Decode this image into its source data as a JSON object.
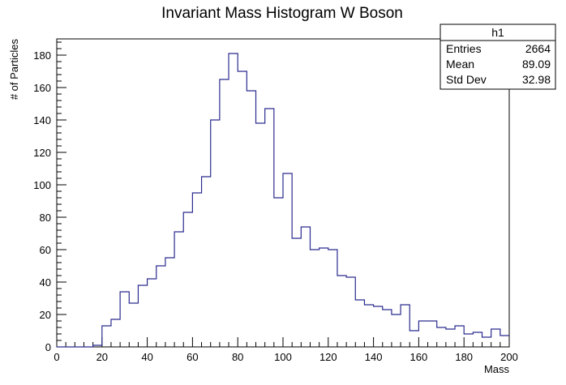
{
  "chart_data": {
    "type": "bar",
    "histogram": true,
    "title": "Invariant Mass Histogram W Boson",
    "xlabel": "Mass",
    "ylabel": "# of Particles",
    "xlim": [
      0,
      200
    ],
    "ylim": [
      0,
      190
    ],
    "bin_width": 4,
    "x_ticks": [
      "0",
      "20",
      "40",
      "60",
      "80",
      "100",
      "120",
      "140",
      "160",
      "180",
      "200"
    ],
    "y_ticks": [
      "0",
      "20",
      "40",
      "60",
      "80",
      "100",
      "120",
      "140",
      "160",
      "180"
    ],
    "bin_edges_start": [
      0,
      4,
      8,
      12,
      16,
      20,
      24,
      28,
      32,
      36,
      40,
      44,
      48,
      52,
      56,
      60,
      64,
      68,
      72,
      76,
      80,
      84,
      88,
      92,
      96,
      100,
      104,
      108,
      112,
      116,
      120,
      124,
      128,
      132,
      136,
      140,
      144,
      148,
      152,
      156,
      160,
      164,
      168,
      172,
      176,
      180,
      184,
      188,
      192,
      196
    ],
    "values": [
      0,
      0,
      0,
      0,
      1,
      13,
      17,
      34,
      27,
      38,
      42,
      50,
      55,
      71,
      83,
      95,
      105,
      140,
      165,
      181,
      170,
      158,
      138,
      147,
      92,
      107,
      67,
      74,
      60,
      61,
      60,
      44,
      43,
      29,
      26,
      25,
      23,
      20,
      26,
      10,
      16,
      16,
      12,
      11,
      13,
      8,
      9,
      6,
      11,
      7
    ],
    "line_color": "#2b2b8f",
    "grid": false,
    "stats_box": {
      "title": "h1",
      "rows": [
        {
          "label": "Entries",
          "value": "2664"
        },
        {
          "label": "Mean",
          "value": "89.09"
        },
        {
          "label": "Std Dev",
          "value": "32.98"
        }
      ]
    }
  }
}
